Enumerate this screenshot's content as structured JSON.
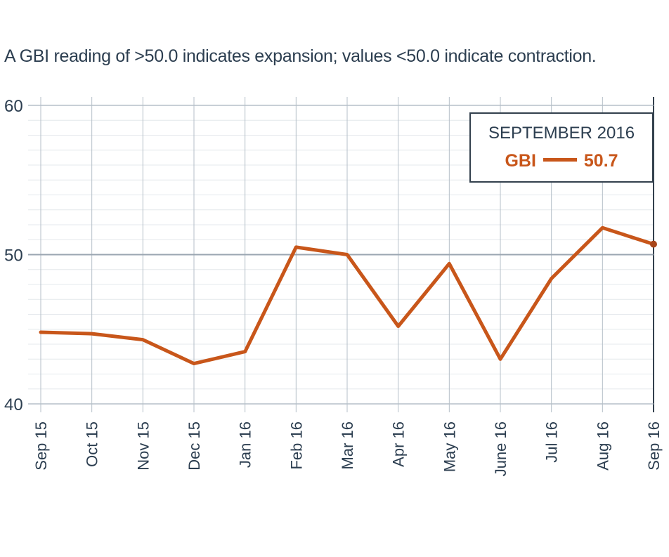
{
  "colors": {
    "series": "#c8561a",
    "grid_major": "#b5bfc8",
    "grid_minor": "#e4e8ec",
    "text": "#2c3e50"
  },
  "subtitle": "A GBI reading of >50.0 indicates expansion; values <50.0 indicate contraction.",
  "callout": {
    "title": "SEPTEMBER 2016",
    "label": "GBI",
    "value": "50.7"
  },
  "chart_data": {
    "type": "line",
    "categories": [
      "Sep 15",
      "Oct 15",
      "Nov 15",
      "Dec 15",
      "Jan 16",
      "Feb 16",
      "Mar 16",
      "Apr 16",
      "May 16",
      "June 16",
      "Jul 16",
      "Aug 16",
      "Sep 16"
    ],
    "series": [
      {
        "name": "GBI",
        "values": [
          44.8,
          44.7,
          44.3,
          42.7,
          43.5,
          50.5,
          50.0,
          45.2,
          49.4,
          43.0,
          48.4,
          51.8,
          50.7
        ]
      }
    ],
    "ylim": [
      40,
      60
    ],
    "yticks": [
      40,
      50,
      60
    ],
    "ytick_labels": [
      "40",
      "50",
      "60"
    ],
    "grid": true
  }
}
